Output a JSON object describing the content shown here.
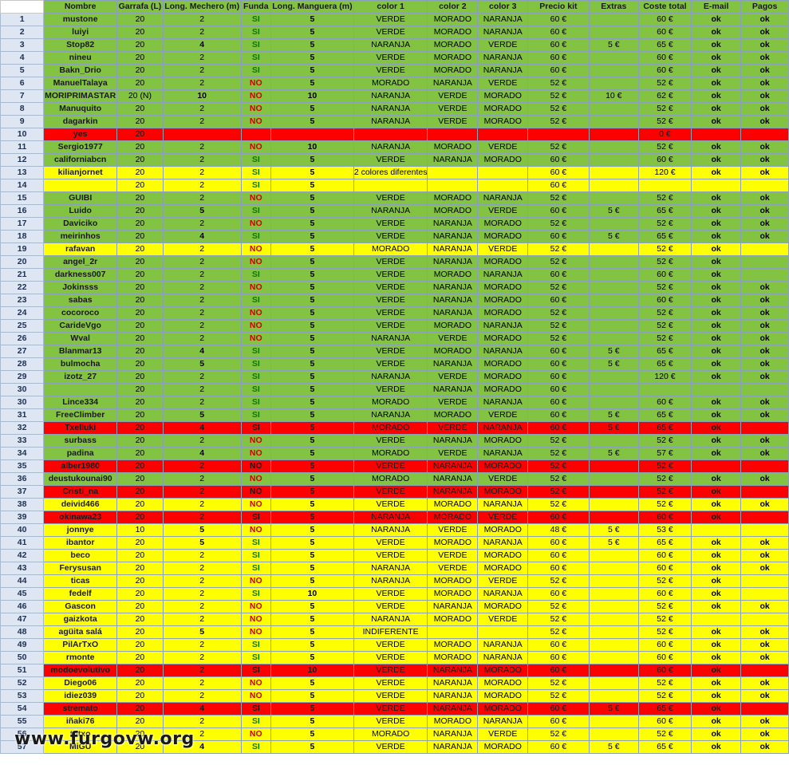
{
  "headers": [
    "Nombre",
    "Garrafa (L)",
    "Long. Mechero (m)",
    "Funda",
    "Long. Manguera (m)",
    "color 1",
    "color 2",
    "color 3",
    "Precio kit",
    "Extras",
    "Coste total",
    "E-mail",
    "Pagos"
  ],
  "rows": [
    {
      "n": "1",
      "fill": "g",
      "c": [
        "mustone",
        "20",
        "2",
        "SI",
        "5",
        "VERDE",
        "MORADO",
        "NARANJA",
        "60 €",
        "",
        "60 €",
        "ok",
        "ok"
      ]
    },
    {
      "n": "2",
      "fill": "g",
      "c": [
        "luiyi",
        "20",
        "2",
        "SI",
        "5",
        "VERDE",
        "MORADO",
        "NARANJA",
        "60 €",
        "",
        "60 €",
        "ok",
        "ok"
      ]
    },
    {
      "n": "3",
      "fill": "g",
      "c": [
        "Stop82",
        "20",
        "4",
        "SI",
        "5",
        "NARANJA",
        "MORADO",
        "VERDE",
        "60 €",
        "5 €",
        "65 €",
        "ok",
        "ok"
      ]
    },
    {
      "n": "4",
      "fill": "g",
      "c": [
        "nineu",
        "20",
        "2",
        "SI",
        "5",
        "VERDE",
        "MORADO",
        "NARANJA",
        "60 €",
        "",
        "60 €",
        "ok",
        "ok"
      ]
    },
    {
      "n": "5",
      "fill": "g",
      "c": [
        "Bakn_Drio",
        "20",
        "2",
        "SI",
        "5",
        "VERDE",
        "MORADO",
        "NARANJA",
        "60 €",
        "",
        "60 €",
        "ok",
        "ok"
      ]
    },
    {
      "n": "6",
      "fill": "g",
      "c": [
        "ManuelTalaya",
        "20",
        "2",
        "NO",
        "5",
        "MORADO",
        "NARANJA",
        "VERDE",
        "52 €",
        "",
        "52 €",
        "ok",
        "ok"
      ]
    },
    {
      "n": "7",
      "fill": "g",
      "c": [
        "MORIPRIMASTAR",
        "20 (N)",
        "10",
        "NO",
        "10",
        "NARANJA",
        "VERDE",
        "MORADO",
        "52 €",
        "10 €",
        "62 €",
        "ok",
        "ok"
      ]
    },
    {
      "n": "8",
      "fill": "g",
      "c": [
        "Manuquito",
        "20",
        "2",
        "NO",
        "5",
        "NARANJA",
        "VERDE",
        "MORADO",
        "52 €",
        "",
        "52 €",
        "ok",
        "ok"
      ]
    },
    {
      "n": "9",
      "fill": "g",
      "c": [
        "dagarkin",
        "20",
        "2",
        "NO",
        "5",
        "NARANJA",
        "VERDE",
        "MORADO",
        "52 €",
        "",
        "52 €",
        "ok",
        "ok"
      ]
    },
    {
      "n": "10",
      "fill": "r",
      "c": [
        "yes",
        "20",
        "",
        "",
        "",
        "",
        "",
        "",
        "",
        "",
        "0 €",
        "",
        ""
      ]
    },
    {
      "n": "11",
      "fill": "g",
      "c": [
        "Sergio1977",
        "20",
        "2",
        "NO",
        "10",
        "NARANJA",
        "MORADO",
        "VERDE",
        "52 €",
        "",
        "52 €",
        "ok",
        "ok"
      ]
    },
    {
      "n": "12",
      "fill": "g",
      "c": [
        "californiabcn",
        "20",
        "2",
        "SI",
        "5",
        "VERDE",
        "NARANJA",
        "MORADO",
        "60 €",
        "",
        "60 €",
        "ok",
        "ok"
      ]
    },
    {
      "n": "13",
      "fill": "y",
      "c": [
        "kilianjornet",
        "20",
        "2",
        "SI",
        "5",
        "2 colores diferentes",
        "",
        "",
        "60 €",
        "",
        "120 €",
        "ok",
        "ok"
      ]
    },
    {
      "n": "14",
      "fill": "y",
      "c": [
        "",
        "20",
        "2",
        "SI",
        "5",
        "",
        "",
        "",
        "60 €",
        "",
        "",
        "",
        ""
      ]
    },
    {
      "n": "15",
      "fill": "g",
      "c": [
        "GUIBI",
        "20",
        "2",
        "NO",
        "5",
        "VERDE",
        "MORADO",
        "NARANJA",
        "52 €",
        "",
        "52 €",
        "ok",
        "ok"
      ]
    },
    {
      "n": "16",
      "fill": "g",
      "c": [
        "Luido",
        "20",
        "5",
        "SI",
        "5",
        "NARANJA",
        "MORADO",
        "VERDE",
        "60 €",
        "5 €",
        "65 €",
        "ok",
        "ok"
      ]
    },
    {
      "n": "17",
      "fill": "g",
      "c": [
        "Daviciko",
        "20",
        "2",
        "NO",
        "5",
        "VERDE",
        "NARANJA",
        "MORADO",
        "52 €",
        "",
        "52 €",
        "ok",
        "ok"
      ]
    },
    {
      "n": "18",
      "fill": "g",
      "c": [
        "meirinhos",
        "20",
        "4",
        "SI",
        "5",
        "VERDE",
        "NARANJA",
        "MORADO",
        "60 €",
        "5 €",
        "65 €",
        "ok",
        "ok"
      ]
    },
    {
      "n": "19",
      "fill": "y",
      "c": [
        "rafavan",
        "20",
        "2",
        "NO",
        "5",
        "MORADO",
        "NARANJA",
        "VERDE",
        "52 €",
        "",
        "52 €",
        "ok",
        ""
      ]
    },
    {
      "n": "20",
      "fill": "g",
      "c": [
        "angel_2r",
        "20",
        "2",
        "NO",
        "5",
        "VERDE",
        "NARANJA",
        "MORADO",
        "52 €",
        "",
        "52 €",
        "ok",
        ""
      ]
    },
    {
      "n": "21",
      "fill": "g",
      "c": [
        "darkness007",
        "20",
        "2",
        "SI",
        "5",
        "VERDE",
        "MORADO",
        "NARANJA",
        "60 €",
        "",
        "60 €",
        "ok",
        ""
      ]
    },
    {
      "n": "22",
      "fill": "g",
      "c": [
        "Jokinsss",
        "20",
        "2",
        "NO",
        "5",
        "VERDE",
        "NARANJA",
        "MORADO",
        "52 €",
        "",
        "52 €",
        "ok",
        "ok"
      ]
    },
    {
      "n": "23",
      "fill": "g",
      "c": [
        "sabas",
        "20",
        "2",
        "SI",
        "5",
        "VERDE",
        "NARANJA",
        "MORADO",
        "60 €",
        "",
        "60 €",
        "ok",
        "ok"
      ]
    },
    {
      "n": "24",
      "fill": "g",
      "c": [
        "cocoroco",
        "20",
        "2",
        "NO",
        "5",
        "VERDE",
        "NARANJA",
        "MORADO",
        "52 €",
        "",
        "52 €",
        "ok",
        "ok"
      ]
    },
    {
      "n": "25",
      "fill": "g",
      "c": [
        "CarideVgo",
        "20",
        "2",
        "NO",
        "5",
        "VERDE",
        "MORADO",
        "NARANJA",
        "52 €",
        "",
        "52 €",
        "ok",
        "ok"
      ]
    },
    {
      "n": "26",
      "fill": "g",
      "c": [
        "Wval",
        "20",
        "2",
        "NO",
        "5",
        "NARANJA",
        "VERDE",
        "MORADO",
        "52 €",
        "",
        "52 €",
        "ok",
        "ok"
      ]
    },
    {
      "n": "27",
      "fill": "g",
      "c": [
        "Blanmar13",
        "20",
        "4",
        "SI",
        "5",
        "VERDE",
        "MORADO",
        "NARANJA",
        "60 €",
        "5 €",
        "65 €",
        "ok",
        "ok"
      ]
    },
    {
      "n": "28",
      "fill": "g",
      "c": [
        "bulmocha",
        "20",
        "5",
        "SI",
        "5",
        "VERDE",
        "NARANJA",
        "MORADO",
        "60 €",
        "5 €",
        "65 €",
        "ok",
        "ok"
      ]
    },
    {
      "n": "29",
      "fill": "g",
      "c": [
        "izotz_27",
        "20",
        "2",
        "SI",
        "5",
        "NARANJA",
        "VERDE",
        "MORADO",
        "60 €",
        "",
        "120 €",
        "ok",
        "ok"
      ]
    },
    {
      "n": "30",
      "fill": "g",
      "c": [
        "",
        "20",
        "2",
        "SI",
        "5",
        "VERDE",
        "NARANJA",
        "MORADO",
        "60 €",
        "",
        "",
        "",
        ""
      ]
    },
    {
      "n": "30",
      "fill": "g",
      "c": [
        "Lince334",
        "20",
        "2",
        "SI",
        "5",
        "MORADO",
        "VERDE",
        "NARANJA",
        "60 €",
        "",
        "60 €",
        "ok",
        "ok"
      ]
    },
    {
      "n": "31",
      "fill": "g",
      "c": [
        "FreeClimber",
        "20",
        "5",
        "SI",
        "5",
        "NARANJA",
        "MORADO",
        "VERDE",
        "60 €",
        "5 €",
        "65 €",
        "ok",
        "ok"
      ]
    },
    {
      "n": "32",
      "fill": "r",
      "c": [
        "Txelluki",
        "20",
        "4",
        "SI",
        "5",
        "MORADO",
        "VERDE",
        "NARANJA",
        "60 €",
        "5 €",
        "65 €",
        "ok",
        ""
      ]
    },
    {
      "n": "33",
      "fill": "g",
      "c": [
        "surbass",
        "20",
        "2",
        "NO",
        "5",
        "VERDE",
        "NARANJA",
        "MORADO",
        "52 €",
        "",
        "52 €",
        "ok",
        "ok"
      ]
    },
    {
      "n": "34",
      "fill": "g",
      "c": [
        "padina",
        "20",
        "4",
        "NO",
        "5",
        "MORADO",
        "VERDE",
        "NARANJA",
        "52 €",
        "5 €",
        "57 €",
        "ok",
        "ok"
      ]
    },
    {
      "n": "35",
      "fill": "r",
      "c": [
        "alber1980",
        "20",
        "2",
        "NO",
        "5",
        "VERDE",
        "NARANJA",
        "MORADO",
        "52 €",
        "",
        "52 €",
        "",
        ""
      ]
    },
    {
      "n": "36",
      "fill": "g",
      "c": [
        "deustukounai90",
        "20",
        "2",
        "NO",
        "5",
        "MORADO",
        "NARANJA",
        "VERDE",
        "52 €",
        "",
        "52 €",
        "ok",
        "ok"
      ]
    },
    {
      "n": "37",
      "fill": "r",
      "c": [
        "Cristi_na",
        "20",
        "2",
        "NO",
        "5",
        "VERDE",
        "NARANJA",
        "MORADO",
        "52 €",
        "",
        "52 €",
        "ok",
        ""
      ]
    },
    {
      "n": "38",
      "fill": "y",
      "c": [
        "deivid466",
        "20",
        "2",
        "NO",
        "5",
        "VERDE",
        "MORADO",
        "NARANJA",
        "52 €",
        "",
        "52 €",
        "ok",
        "ok"
      ]
    },
    {
      "n": "39",
      "fill": "r",
      "c": [
        "okinawa23",
        "20",
        "2",
        "SI",
        "5",
        "NARANJA",
        "MORADO",
        "VERDE",
        "60 €",
        "",
        "60 €",
        "ok",
        ""
      ]
    },
    {
      "n": "40",
      "fill": "y",
      "c": [
        "jonnye",
        "10",
        "5",
        "NO",
        "5",
        "NARANJA",
        "VERDE",
        "MORADO",
        "48 €",
        "5 €",
        "53 €",
        "",
        ""
      ]
    },
    {
      "n": "41",
      "fill": "y",
      "c": [
        "ibantor",
        "20",
        "5",
        "SI",
        "5",
        "VERDE",
        "MORADO",
        "NARANJA",
        "60 €",
        "5 €",
        "65 €",
        "ok",
        "ok"
      ]
    },
    {
      "n": "42",
      "fill": "y",
      "c": [
        "beco",
        "20",
        "2",
        "SI",
        "5",
        "VERDE",
        "VERDE",
        "MORADO",
        "60 €",
        "",
        "60 €",
        "ok",
        "ok"
      ]
    },
    {
      "n": "43",
      "fill": "y",
      "c": [
        "Ferysusan",
        "20",
        "2",
        "SI",
        "5",
        "NARANJA",
        "VERDE",
        "MORADO",
        "60 €",
        "",
        "60 €",
        "ok",
        "ok"
      ]
    },
    {
      "n": "44",
      "fill": "y",
      "c": [
        "ticas",
        "20",
        "2",
        "NO",
        "5",
        "NARANJA",
        "MORADO",
        "VERDE",
        "52 €",
        "",
        "52 €",
        "ok",
        ""
      ]
    },
    {
      "n": "45",
      "fill": "y",
      "c": [
        "fedelf",
        "20",
        "2",
        "SI",
        "10",
        "VERDE",
        "MORADO",
        "NARANJA",
        "60 €",
        "",
        "60 €",
        "ok",
        ""
      ]
    },
    {
      "n": "46",
      "fill": "y",
      "c": [
        "Gascon",
        "20",
        "2",
        "NO",
        "5",
        "VERDE",
        "NARANJA",
        "MORADO",
        "52 €",
        "",
        "52 €",
        "ok",
        "ok"
      ]
    },
    {
      "n": "47",
      "fill": "y",
      "c": [
        "gaizkota",
        "20",
        "2",
        "NO",
        "5",
        "NARANJA",
        "MORADO",
        "VERDE",
        "52 €",
        "",
        "52 €",
        "",
        ""
      ]
    },
    {
      "n": "48",
      "fill": "y",
      "c": [
        "agüita salá",
        "20",
        "5",
        "NO",
        "5",
        "INDIFERENTE",
        "",
        "",
        "52 €",
        "",
        "52 €",
        "ok",
        "ok"
      ]
    },
    {
      "n": "49",
      "fill": "y",
      "c": [
        "PilArTxO",
        "20",
        "2",
        "SI",
        "5",
        "VERDE",
        "MORADO",
        "NARANJA",
        "60 €",
        "",
        "60 €",
        "ok",
        "ok"
      ]
    },
    {
      "n": "50",
      "fill": "y",
      "c": [
        "rmonte",
        "20",
        "2",
        "SI",
        "5",
        "VERDE",
        "MORADO",
        "NARANJA",
        "60 €",
        "",
        "60 €",
        "ok",
        "ok"
      ]
    },
    {
      "n": "51",
      "fill": "r",
      "c": [
        "modoevolutivo",
        "20",
        "2",
        "SI",
        "10",
        "VERDE",
        "NARANJA",
        "MORADO",
        "60 €",
        "",
        "60 €",
        "ok",
        ""
      ]
    },
    {
      "n": "52",
      "fill": "y",
      "c": [
        "Diego06",
        "20",
        "2",
        "NO",
        "5",
        "VERDE",
        "NARANJA",
        "MORADO",
        "52 €",
        "",
        "52 €",
        "ok",
        "ok"
      ]
    },
    {
      "n": "53",
      "fill": "y",
      "c": [
        "idiez039",
        "20",
        "2",
        "NO",
        "5",
        "VERDE",
        "NARANJA",
        "MORADO",
        "52 €",
        "",
        "52 €",
        "ok",
        "ok"
      ]
    },
    {
      "n": "54",
      "fill": "r",
      "c": [
        "stremato",
        "20",
        "4",
        "SI",
        "5",
        "VERDE",
        "NARANJA",
        "MORADO",
        "60 €",
        "5 €",
        "65 €",
        "ok",
        ""
      ]
    },
    {
      "n": "55",
      "fill": "y",
      "c": [
        "iñaki76",
        "20",
        "2",
        "SI",
        "5",
        "VERDE",
        "MORADO",
        "NARANJA",
        "60 €",
        "",
        "60 €",
        "ok",
        "ok"
      ]
    },
    {
      "n": "56",
      "fill": "y",
      "c": [
        "tutxo",
        "20",
        "2",
        "NO",
        "5",
        "MORADO",
        "NARANJA",
        "VERDE",
        "52 €",
        "",
        "52 €",
        "ok",
        "ok"
      ]
    },
    {
      "n": "57",
      "fill": "y",
      "c": [
        "MiGU",
        "20",
        "4",
        "SI",
        "5",
        "VERDE",
        "NARANJA",
        "MORADO",
        "60 €",
        "5 €",
        "65 €",
        "ok",
        "ok"
      ]
    }
  ],
  "watermark": "www.furgovw.org"
}
